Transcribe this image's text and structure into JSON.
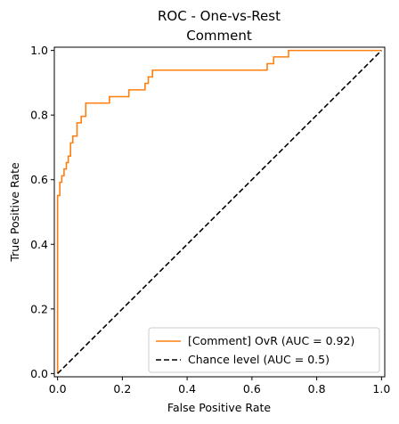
{
  "chart_data": {
    "type": "line",
    "title": "ROC - One-vs-Rest",
    "subtitle": "Comment",
    "xlabel": "False Positive Rate",
    "ylabel": "True Positive Rate",
    "xlim": [
      -0.01,
      1.01
    ],
    "ylim": [
      -0.01,
      1.01
    ],
    "xticks": [
      "0.0",
      "0.2",
      "0.4",
      "0.6",
      "0.8",
      "1.0"
    ],
    "yticks": [
      "0.0",
      "0.2",
      "0.4",
      "0.6",
      "0.8",
      "1.0"
    ],
    "grid": false,
    "legend_position": "lower-right",
    "series": [
      {
        "name": "[Comment] OvR (AUC = 0.92)",
        "color": "#ff7f0e",
        "style": "solid",
        "x": [
          0.0,
          0.0,
          0.007,
          0.007,
          0.013,
          0.013,
          0.02,
          0.02,
          0.027,
          0.027,
          0.033,
          0.033,
          0.04,
          0.04,
          0.047,
          0.047,
          0.06,
          0.06,
          0.073,
          0.073,
          0.087,
          0.087,
          0.16,
          0.16,
          0.22,
          0.22,
          0.27,
          0.27,
          0.28,
          0.28,
          0.293,
          0.293,
          0.647,
          0.647,
          0.667,
          0.667,
          0.713,
          0.713,
          1.0
        ],
        "y": [
          0.0,
          0.551,
          0.551,
          0.592,
          0.592,
          0.612,
          0.612,
          0.633,
          0.633,
          0.653,
          0.653,
          0.673,
          0.673,
          0.714,
          0.714,
          0.735,
          0.735,
          0.776,
          0.776,
          0.796,
          0.796,
          0.837,
          0.837,
          0.857,
          0.857,
          0.878,
          0.878,
          0.898,
          0.898,
          0.918,
          0.918,
          0.939,
          0.939,
          0.959,
          0.959,
          0.98,
          0.98,
          1.0,
          1.0
        ]
      },
      {
        "name": "Chance level (AUC = 0.5)",
        "color": "#000000",
        "style": "dashed",
        "x": [
          0.0,
          1.0
        ],
        "y": [
          0.0,
          1.0
        ]
      }
    ]
  }
}
